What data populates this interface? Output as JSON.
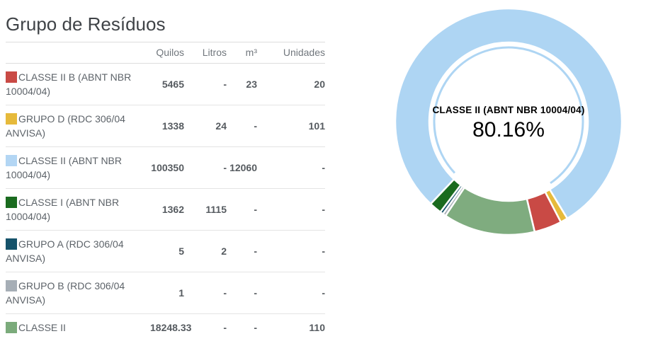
{
  "page": {
    "title": "Grupo de Resíduos"
  },
  "table": {
    "columns": [
      "Quilos",
      "Litros",
      "m³",
      "Unidades"
    ],
    "rows": [
      {
        "label": "CLASSE II B (ABNT NBR 10004/04)",
        "color": "#c94a45",
        "quilos": "5465",
        "litros": "-",
        "m3": "23",
        "unidades": "20"
      },
      {
        "label": "GRUPO D (RDC 306/04 ANVISA)",
        "color": "#e6ba3b",
        "quilos": "1338",
        "litros": "24",
        "m3": "-",
        "unidades": "101"
      },
      {
        "label": "CLASSE II (ABNT NBR 10004/04)",
        "color": "#b3d6f4",
        "quilos": "100350",
        "litros": "-",
        "m3": "12060",
        "unidades": "-"
      },
      {
        "label": "CLASSE I (ABNT NBR 10004/04)",
        "color": "#1a6b1f",
        "quilos": "1362",
        "litros": "1115",
        "m3": "-",
        "unidades": "-"
      },
      {
        "label": "GRUPO A (RDC 306/04 ANVISA)",
        "color": "#15526a",
        "quilos": "5",
        "litros": "2",
        "m3": "-",
        "unidades": "-"
      },
      {
        "label": "GRUPO B (RDC 306/04 ANVISA)",
        "color": "#a6aeb6",
        "quilos": "1",
        "litros": "-",
        "m3": "-",
        "unidades": "-"
      },
      {
        "label": "CLASSE II",
        "color": "#7bab7b",
        "quilos": "18248.33",
        "litros": "-",
        "m3": "-",
        "unidades": "110"
      }
    ]
  },
  "chart_data": {
    "type": "pie",
    "donut": true,
    "legend_position": "none",
    "center_label": "CLASSE II (ABNT NBR 10004/04)",
    "center_value": "80.16%",
    "start_angle_deg": 223.4,
    "direction": "clockwise",
    "outer_radius": 160,
    "inner_radius": 112,
    "slices": [
      {
        "label": "CLASSE II (ABNT NBR 10004/04)",
        "color": "#aed5f3",
        "pct": 80.16,
        "draw_pct": 79.28,
        "selected": true
      },
      {
        "label": "GRUPO D (RDC 306/04 ANVISA)",
        "color": "#e6ba3b",
        "pct": 1.04,
        "draw_pct": 1.04,
        "selected": false
      },
      {
        "label": "CLASSE II B (ABNT NBR 10004/04)",
        "color": "#c94a45",
        "pct": 3.93,
        "draw_pct": 3.93,
        "selected": false
      },
      {
        "label": "CLASSE II",
        "color": "#7fac7f",
        "pct": 13.09,
        "draw_pct": 13.09,
        "selected": false
      },
      {
        "label": "GRUPO B (RDC 306/04 ANVISA)",
        "color": "#a6aeb6",
        "pct": 0.0007,
        "draw_pct": 0.45,
        "selected": false
      },
      {
        "label": "GRUPO A (RDC 306/04 ANVISA)",
        "color": "#15526a",
        "pct": 0.005,
        "draw_pct": 0.45,
        "selected": false
      },
      {
        "label": "CLASSE I (ABNT NBR 10004/04)",
        "color": "#1a6b1f",
        "pct": 1.77,
        "draw_pct": 1.77,
        "selected": false
      }
    ]
  }
}
